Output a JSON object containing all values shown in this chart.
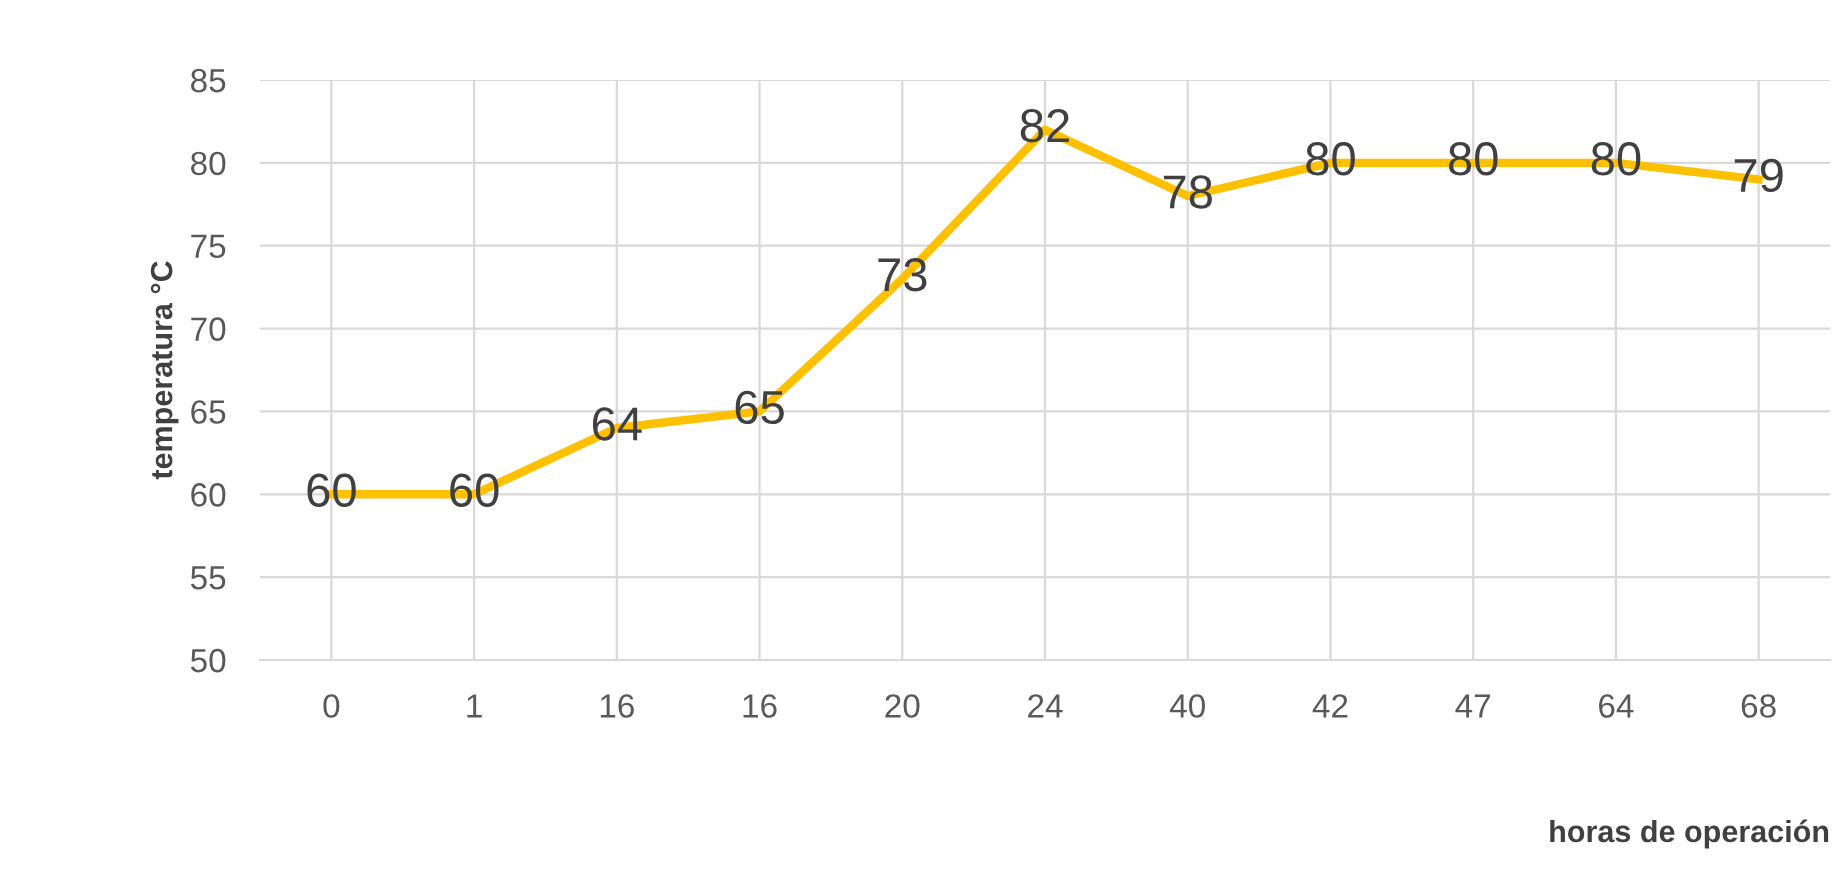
{
  "chart_data": {
    "type": "line",
    "xlabel": "horas de operación",
    "ylabel": "temperatura °C",
    "categories": [
      "0",
      "1",
      "16",
      "16",
      "20",
      "24",
      "40",
      "42",
      "47",
      "64",
      "68"
    ],
    "series": [
      {
        "color": "#ffc000",
        "values": [
          60,
          60,
          64,
          65,
          73,
          82,
          78,
          80,
          80,
          80,
          79
        ]
      }
    ],
    "ylim": [
      50,
      85
    ],
    "yticks": [
      50,
      55,
      60,
      65,
      70,
      75,
      80,
      85
    ],
    "grid": true,
    "data_labels": true,
    "marker": "none",
    "line_style": "solid",
    "legend": false
  }
}
